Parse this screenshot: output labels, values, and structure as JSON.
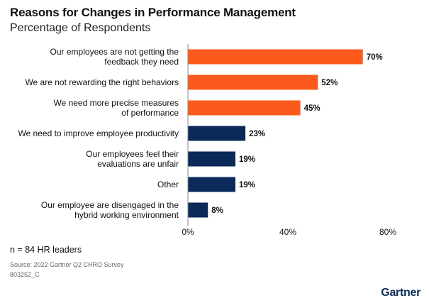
{
  "header": {
    "title": "Reasons for Changes in Performance Management",
    "subtitle": "Percentage of Respondents"
  },
  "footer": {
    "note": "n = 84 HR leaders",
    "source": "Source: 2022 Gartner Q2 CHRO Survey",
    "doc_id": "803252_C",
    "brand": "Gartner"
  },
  "colors": {
    "accent": "#fc5a1c",
    "primary": "#0b2a59"
  },
  "chart_data": {
    "type": "bar",
    "orientation": "horizontal",
    "title": "Reasons for Changes in Performance Management",
    "subtitle": "Percentage of Respondents",
    "categories": [
      [
        "Our employees are not getting the",
        "feedback they need"
      ],
      [
        "We are not rewarding the right behaviors"
      ],
      [
        "We need more precise measures",
        "of performance"
      ],
      [
        "We need to improve employee productivity"
      ],
      [
        "Our employees feel their",
        "evaluations are unfair"
      ],
      [
        "Other"
      ],
      [
        "Our employee are disengaged in the",
        "hybrid working environment"
      ]
    ],
    "values": [
      70,
      52,
      45,
      23,
      19,
      19,
      8
    ],
    "value_labels": [
      "70%",
      "52%",
      "45%",
      "23%",
      "19%",
      "19%",
      "8%"
    ],
    "bar_colors": [
      "#fc5a1c",
      "#fc5a1c",
      "#fc5a1c",
      "#0b2a59",
      "#0b2a59",
      "#0b2a59",
      "#0b2a59"
    ],
    "xlim": [
      0,
      80
    ],
    "xticks": [
      0,
      40,
      80
    ],
    "xtick_labels": [
      "0%",
      "40%",
      "80%"
    ],
    "grid": false,
    "legend": "none"
  }
}
